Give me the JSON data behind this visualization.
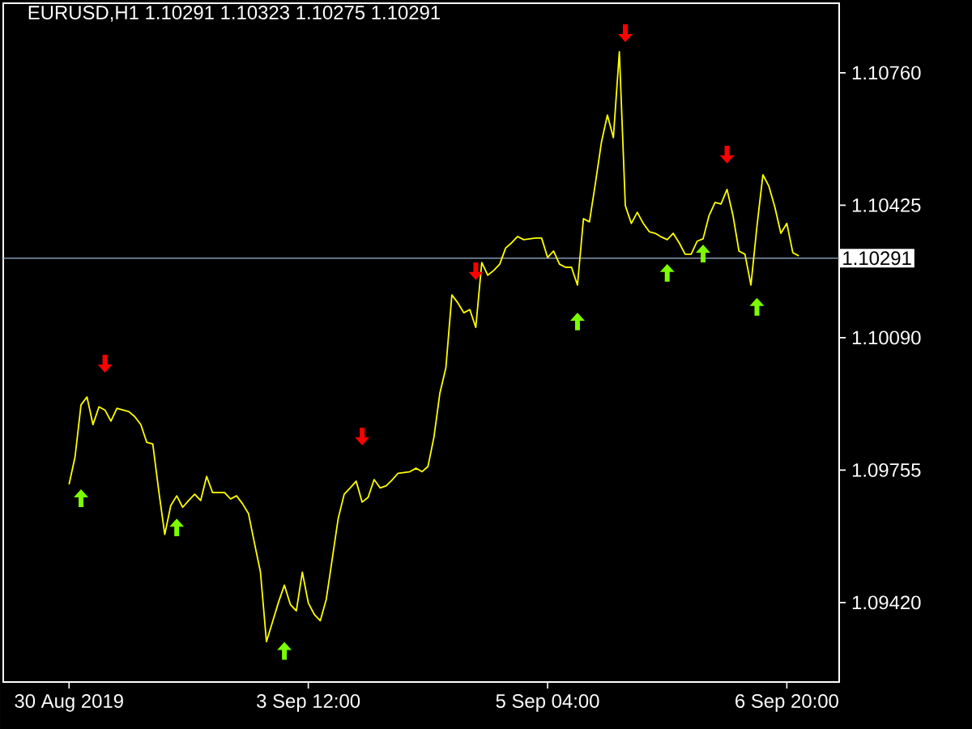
{
  "chart_data": {
    "type": "line",
    "title": "EURUSD,H1  1.10291 1.10323 1.10275 1.10291",
    "categories": [
      "30 Aug 2019",
      null,
      null,
      null,
      null,
      null,
      null,
      null,
      null,
      null,
      null,
      null,
      null,
      null,
      null,
      null,
      null,
      null,
      null,
      null,
      null,
      null,
      null,
      null,
      null,
      null,
      null,
      null,
      null,
      null,
      null,
      null,
      null,
      null,
      null,
      null,
      null,
      null,
      null,
      null,
      "3 Sep 12:00",
      null,
      null,
      null,
      null,
      null,
      null,
      null,
      null,
      null,
      null,
      null,
      null,
      null,
      null,
      null,
      null,
      null,
      null,
      null,
      null,
      null,
      null,
      null,
      null,
      null,
      null,
      null,
      null,
      null,
      null,
      null,
      null,
      null,
      null,
      null,
      null,
      null,
      null,
      null,
      "5 Sep 04:00",
      null,
      null,
      null,
      null,
      null,
      null,
      null,
      null,
      null,
      null,
      null,
      null,
      null,
      null,
      null,
      null,
      null,
      null,
      null,
      null,
      null,
      null,
      null,
      null,
      null,
      null,
      null,
      null,
      null,
      null,
      null,
      null,
      null,
      null,
      null,
      null,
      null,
      null,
      null,
      "6 Sep 20:00",
      null,
      null
    ],
    "ylim": [
      1.09219,
      1.10936
    ],
    "yticks": [
      {
        "value": 1.0942,
        "label": "1.09420"
      },
      {
        "value": 1.09755,
        "label": "1.09755"
      },
      {
        "value": 1.1009,
        "label": "1.10090"
      },
      {
        "value": 1.10425,
        "label": "1.10425"
      },
      {
        "value": 1.1076,
        "label": "1.10760"
      }
    ],
    "ref_lines": [
      {
        "axis": "y",
        "value": 1.10291,
        "label": "1.10291",
        "color": "#8497b0"
      }
    ],
    "series": [
      {
        "color": "#ffff00",
        "values": [
          1.09719,
          1.09788,
          1.0992,
          1.0994,
          1.0987,
          1.09915,
          1.09907,
          1.09879,
          1.09911,
          1.09907,
          1.09903,
          1.0989,
          1.0987,
          1.09825,
          1.09821,
          1.09702,
          1.09592,
          1.09665,
          1.0969,
          1.09661,
          1.09678,
          1.09694,
          1.09678,
          1.09739,
          1.09698,
          1.09698,
          1.09698,
          1.09682,
          1.0969,
          1.0967,
          1.09645,
          1.0957,
          1.09497,
          1.09321,
          1.0937,
          1.0942,
          1.09464,
          1.09415,
          1.09399,
          1.09497,
          1.09419,
          1.0939,
          1.09374,
          1.09428,
          1.0953,
          1.09633,
          1.09694,
          1.0971,
          1.09727,
          1.09674,
          1.09686,
          1.09731,
          1.0971,
          1.09715,
          1.0973,
          1.09747,
          1.09749,
          1.09751,
          1.0976,
          1.09751,
          1.09764,
          1.09838,
          1.0995,
          1.10014,
          1.10198,
          1.10178,
          1.10153,
          1.10161,
          1.10116,
          1.1028,
          1.10248,
          1.1026,
          1.10276,
          1.10317,
          1.1033,
          1.10346,
          1.10338,
          1.1034,
          1.10342,
          1.10342,
          1.10293,
          1.10309,
          1.10276,
          1.10268,
          1.10268,
          1.10223,
          1.10391,
          1.10383,
          1.10481,
          1.10584,
          1.10653,
          1.10596,
          1.10813,
          1.10424,
          1.10379,
          1.10407,
          1.10379,
          1.10358,
          1.10354,
          1.10345,
          1.10338,
          1.10354,
          1.1033,
          1.10301,
          1.10301,
          1.10334,
          1.1034,
          1.10399,
          1.10432,
          1.10428,
          1.10465,
          1.10399,
          1.10309,
          1.10301,
          1.10223,
          1.10371,
          1.10502,
          1.10473,
          1.1042,
          1.10354,
          1.10379,
          1.10305,
          1.10297
        ]
      },
      {
        "type": "scatter",
        "color": "#ff0000",
        "values": [
          null,
          null,
          null,
          null,
          null,
          null,
          1.10022,
          null,
          null,
          null,
          null,
          null,
          null,
          null,
          null,
          null,
          null,
          null,
          null,
          null,
          null,
          null,
          null,
          null,
          null,
          null,
          null,
          null,
          null,
          null,
          null,
          null,
          null,
          null,
          null,
          null,
          null,
          null,
          null,
          null,
          null,
          null,
          null,
          null,
          null,
          null,
          null,
          null,
          null,
          1.09838,
          null,
          null,
          null,
          null,
          null,
          null,
          null,
          null,
          null,
          null,
          null,
          null,
          null,
          null,
          null,
          null,
          null,
          null,
          1.10256,
          null,
          null,
          null,
          null,
          null,
          null,
          null,
          null,
          null,
          null,
          null,
          null,
          null,
          null,
          null,
          null,
          null,
          null,
          null,
          null,
          null,
          null,
          null,
          null,
          1.10858,
          null,
          null,
          null,
          null,
          null,
          null,
          null,
          null,
          null,
          null,
          null,
          null,
          null,
          null,
          null,
          null,
          1.10551,
          null,
          null,
          null,
          null,
          null,
          null,
          null,
          null,
          null,
          null,
          null,
          null
        ]
      },
      {
        "type": "scatter",
        "color": "#7cfc00",
        "values": [
          null,
          null,
          1.09686,
          null,
          null,
          null,
          null,
          null,
          null,
          null,
          null,
          null,
          null,
          null,
          null,
          null,
          null,
          null,
          1.09612,
          null,
          null,
          null,
          null,
          null,
          null,
          null,
          null,
          null,
          null,
          null,
          null,
          null,
          null,
          null,
          null,
          null,
          1.093,
          null,
          null,
          null,
          null,
          null,
          null,
          null,
          null,
          null,
          null,
          null,
          null,
          null,
          null,
          null,
          null,
          null,
          null,
          null,
          null,
          null,
          null,
          null,
          null,
          null,
          null,
          null,
          null,
          null,
          null,
          null,
          null,
          null,
          null,
          null,
          null,
          null,
          null,
          null,
          null,
          null,
          null,
          null,
          null,
          null,
          null,
          null,
          null,
          1.10133,
          null,
          null,
          null,
          null,
          null,
          null,
          null,
          null,
          null,
          null,
          null,
          null,
          null,
          null,
          1.10256,
          null,
          null,
          null,
          null,
          null,
          1.10305,
          null,
          null,
          null,
          null,
          null,
          null,
          null,
          null,
          1.1017,
          null,
          null,
          null,
          null,
          null,
          null,
          null
        ]
      }
    ]
  }
}
